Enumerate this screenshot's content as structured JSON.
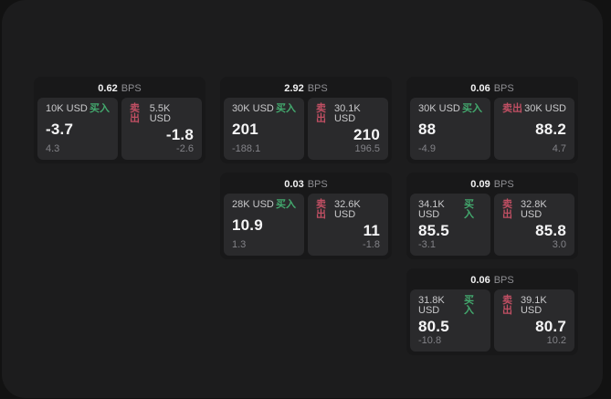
{
  "colors": {
    "page_background": "#121212",
    "surface_background": "#1c1c1d",
    "card_background": "#181819",
    "panel_background": "#2a2a2c",
    "buy_green": "#43a96e",
    "sell_red": "#c04f63",
    "value_white": "#f5f5f6",
    "label_gray": "#c9c9cb",
    "muted_gray": "#828287"
  },
  "cards": [
    {
      "bps": "0.62",
      "bps_unit": "BPS",
      "layout": {
        "row": 1,
        "col": 1
      },
      "buy": {
        "amount": "10K USD",
        "tag": "买入",
        "value": "-3.7",
        "delta": "4.3"
      },
      "sell": {
        "tag": "卖出",
        "amount": "5.5K USD",
        "value": "-1.8",
        "delta": "-2.6"
      }
    },
    {
      "bps": "2.92",
      "bps_unit": "BPS",
      "layout": {
        "row": 1,
        "col": 2
      },
      "buy": {
        "amount": "30K USD",
        "tag": "买入",
        "value": "201",
        "delta": "-188.1"
      },
      "sell": {
        "tag": "卖出",
        "amount": "30.1K USD",
        "value": "210",
        "delta": "196.5"
      }
    },
    {
      "bps": "0.06",
      "bps_unit": "BPS",
      "layout": {
        "row": 1,
        "col": 3
      },
      "buy": {
        "amount": "30K USD",
        "tag": "买入",
        "value": "88",
        "delta": "-4.9"
      },
      "sell": {
        "tag": "卖出",
        "amount": "30K USD",
        "value": "88.2",
        "delta": "4.7"
      }
    },
    {
      "bps": "0.03",
      "bps_unit": "BPS",
      "layout": {
        "row": 2,
        "col": 2
      },
      "buy": {
        "amount": "28K USD",
        "tag": "买入",
        "value": "10.9",
        "delta": "1.3"
      },
      "sell": {
        "tag": "卖出",
        "amount": "32.6K USD",
        "value": "11",
        "delta": "-1.8"
      }
    },
    {
      "bps": "0.09",
      "bps_unit": "BPS",
      "layout": {
        "row": 2,
        "col": 3
      },
      "buy": {
        "amount": "34.1K USD",
        "tag": "买入",
        "value": "85.5",
        "delta": "-3.1"
      },
      "sell": {
        "tag": "卖出",
        "amount": "32.8K USD",
        "value": "85.8",
        "delta": "3.0"
      }
    },
    {
      "bps": "0.06",
      "bps_unit": "BPS",
      "layout": {
        "row": 3,
        "col": 3
      },
      "buy": {
        "amount": "31.8K USD",
        "tag": "买入",
        "value": "80.5",
        "delta": "-10.8"
      },
      "sell": {
        "tag": "卖出",
        "amount": "39.1K USD",
        "value": "80.7",
        "delta": "10.2"
      }
    }
  ]
}
